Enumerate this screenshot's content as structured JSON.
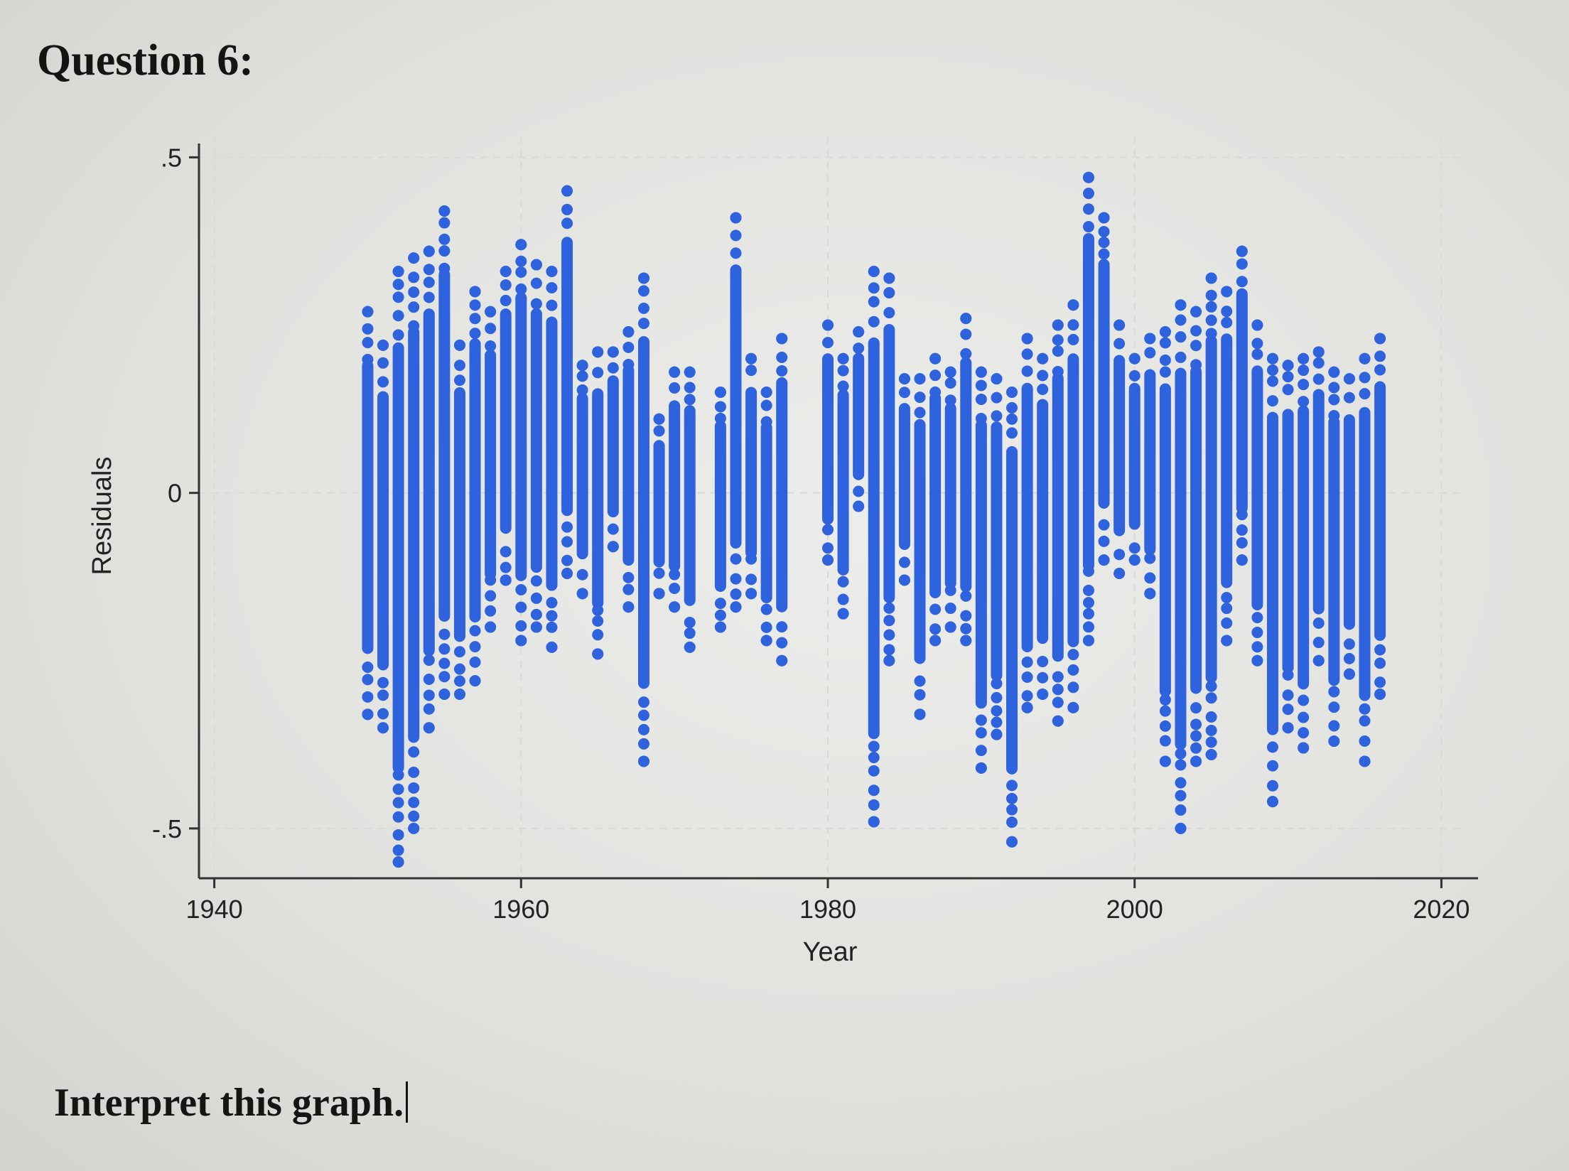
{
  "question": {
    "title": "Question 6:"
  },
  "prompt": {
    "text": "Interpret this graph."
  },
  "colors": {
    "marker": "#2f63dd",
    "gridline": "#d9d9d6",
    "axis": "#333333"
  },
  "chart_data": {
    "type": "scatter",
    "title": "",
    "xlabel": "Year",
    "ylabel": "Residuals",
    "xlim": [
      1939,
      2021
    ],
    "ylim": [
      -0.57,
      0.51
    ],
    "xticks": [
      1940,
      1960,
      1980,
      2000,
      2020
    ],
    "xtick_labels": [
      "1940",
      "1960",
      "1980",
      "2000",
      "2020"
    ],
    "yticks": [
      -0.5,
      0,
      0.5
    ],
    "ytick_labels": [
      "-.5",
      "0",
      ".5"
    ],
    "grid": true,
    "legend": "none",
    "series": [
      {
        "points_note_unused": "",
        "columns": [
          {
            "x": 1950,
            "min": -0.33,
            "max": 0.27
          },
          {
            "x": 1951,
            "min": -0.35,
            "max": 0.22
          },
          {
            "x": 1952,
            "min": -0.55,
            "max": 0.33
          },
          {
            "x": 1953,
            "min": -0.5,
            "max": 0.35
          },
          {
            "x": 1954,
            "min": -0.35,
            "max": 0.36
          },
          {
            "x": 1955,
            "min": -0.3,
            "max": 0.42
          },
          {
            "x": 1956,
            "min": -0.3,
            "max": 0.22
          },
          {
            "x": 1957,
            "min": -0.28,
            "max": 0.3
          },
          {
            "x": 1958,
            "min": -0.2,
            "max": 0.27
          },
          {
            "x": 1959,
            "min": -0.13,
            "max": 0.33
          },
          {
            "x": 1960,
            "min": -0.22,
            "max": 0.37
          },
          {
            "x": 1961,
            "min": -0.2,
            "max": 0.34
          },
          {
            "x": 1962,
            "min": -0.23,
            "max": 0.33
          },
          {
            "x": 1963,
            "min": -0.12,
            "max": 0.45
          },
          {
            "x": 1964,
            "min": -0.15,
            "max": 0.19
          },
          {
            "x": 1965,
            "min": -0.24,
            "max": 0.21
          },
          {
            "x": 1966,
            "min": -0.08,
            "max": 0.21
          },
          {
            "x": 1967,
            "min": -0.17,
            "max": 0.24
          },
          {
            "x": 1968,
            "min": -0.4,
            "max": 0.32
          },
          {
            "x": 1969,
            "min": -0.15,
            "max": 0.11
          },
          {
            "x": 1970,
            "min": -0.17,
            "max": 0.18
          },
          {
            "x": 1971,
            "min": -0.23,
            "max": 0.18
          },
          {
            "x": 1973,
            "min": -0.2,
            "max": 0.15
          },
          {
            "x": 1974,
            "min": -0.17,
            "max": 0.41
          },
          {
            "x": 1975,
            "min": -0.15,
            "max": 0.2
          },
          {
            "x": 1976,
            "min": -0.22,
            "max": 0.15
          },
          {
            "x": 1977,
            "min": -0.25,
            "max": 0.23
          },
          {
            "x": 1980,
            "min": -0.1,
            "max": 0.25
          },
          {
            "x": 1981,
            "min": -0.18,
            "max": 0.2
          },
          {
            "x": 1982,
            "min": -0.02,
            "max": 0.24
          },
          {
            "x": 1983,
            "min": -0.49,
            "max": 0.33
          },
          {
            "x": 1984,
            "min": -0.25,
            "max": 0.32
          },
          {
            "x": 1985,
            "min": -0.13,
            "max": 0.17
          },
          {
            "x": 1986,
            "min": -0.33,
            "max": 0.17
          },
          {
            "x": 1987,
            "min": -0.22,
            "max": 0.2
          },
          {
            "x": 1988,
            "min": -0.2,
            "max": 0.18
          },
          {
            "x": 1989,
            "min": -0.22,
            "max": 0.26
          },
          {
            "x": 1990,
            "min": -0.41,
            "max": 0.18
          },
          {
            "x": 1991,
            "min": -0.36,
            "max": 0.17
          },
          {
            "x": 1992,
            "min": -0.52,
            "max": 0.15
          },
          {
            "x": 1993,
            "min": -0.32,
            "max": 0.23
          },
          {
            "x": 1994,
            "min": -0.3,
            "max": 0.2
          },
          {
            "x": 1995,
            "min": -0.34,
            "max": 0.25
          },
          {
            "x": 1996,
            "min": -0.32,
            "max": 0.28
          },
          {
            "x": 1997,
            "min": -0.22,
            "max": 0.47
          },
          {
            "x": 1998,
            "min": -0.1,
            "max": 0.41
          },
          {
            "x": 1999,
            "min": -0.12,
            "max": 0.25
          },
          {
            "x": 2000,
            "min": -0.1,
            "max": 0.2
          },
          {
            "x": 2001,
            "min": -0.15,
            "max": 0.23
          },
          {
            "x": 2002,
            "min": -0.4,
            "max": 0.24
          },
          {
            "x": 2003,
            "min": -0.5,
            "max": 0.28
          },
          {
            "x": 2004,
            "min": -0.4,
            "max": 0.27
          },
          {
            "x": 2005,
            "min": -0.39,
            "max": 0.32
          },
          {
            "x": 2006,
            "min": -0.22,
            "max": 0.3
          },
          {
            "x": 2007,
            "min": -0.1,
            "max": 0.36
          },
          {
            "x": 2008,
            "min": -0.25,
            "max": 0.25
          },
          {
            "x": 2009,
            "min": -0.46,
            "max": 0.2
          },
          {
            "x": 2010,
            "min": -0.35,
            "max": 0.19
          },
          {
            "x": 2011,
            "min": -0.38,
            "max": 0.2
          },
          {
            "x": 2012,
            "min": -0.25,
            "max": 0.21
          },
          {
            "x": 2013,
            "min": -0.37,
            "max": 0.18
          },
          {
            "x": 2014,
            "min": -0.27,
            "max": 0.17
          },
          {
            "x": 2015,
            "min": -0.4,
            "max": 0.2
          },
          {
            "x": 2016,
            "min": -0.3,
            "max": 0.23
          }
        ]
      }
    ]
  }
}
